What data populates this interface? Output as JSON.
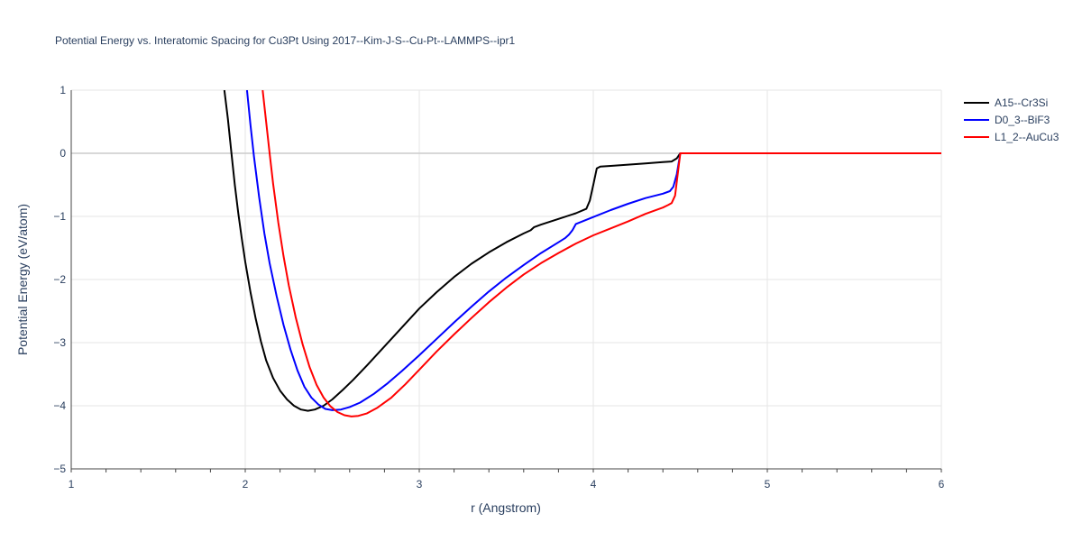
{
  "chart_data": {
    "type": "line",
    "title": "Potential Energy vs. Interatomic Spacing for Cu3Pt Using 2017--Kim-J-S--Cu-Pt--LAMMPS--ipr1",
    "xlabel": "r (Angstrom)",
    "ylabel": "Potential Energy (eV/atom)",
    "xlim": [
      1,
      6
    ],
    "ylim": [
      -5,
      1
    ],
    "xticks": [
      "1",
      "2",
      "3",
      "4",
      "5",
      "6"
    ],
    "yticks": [
      "1",
      "0",
      "−1",
      "−2",
      "−3",
      "−4",
      "−5"
    ],
    "grid": true,
    "legend_position": "top-right",
    "series": [
      {
        "name": "A15--Cr3Si",
        "color": "#000000",
        "x": [
          1.88,
          1.9,
          1.92,
          1.94,
          1.96,
          1.98,
          2.0,
          2.03,
          2.06,
          2.09,
          2.12,
          2.16,
          2.2,
          2.24,
          2.28,
          2.32,
          2.36,
          2.4,
          2.45,
          2.5,
          2.56,
          2.62,
          2.7,
          2.8,
          2.9,
          3.0,
          3.1,
          3.2,
          3.3,
          3.4,
          3.5,
          3.6,
          3.64,
          3.66,
          3.7,
          3.8,
          3.9,
          3.96,
          3.98,
          4.0,
          4.02,
          4.04,
          4.1,
          4.2,
          4.3,
          4.4,
          4.45,
          4.48,
          4.5,
          4.6,
          5.0,
          5.5,
          6.0
        ],
        "y": [
          1.0,
          0.55,
          0.02,
          -0.5,
          -0.95,
          -1.35,
          -1.72,
          -2.2,
          -2.62,
          -2.98,
          -3.28,
          -3.56,
          -3.76,
          -3.9,
          -4.0,
          -4.06,
          -4.08,
          -4.06,
          -4.0,
          -3.9,
          -3.75,
          -3.59,
          -3.36,
          -3.06,
          -2.76,
          -2.46,
          -2.2,
          -1.96,
          -1.75,
          -1.57,
          -1.41,
          -1.27,
          -1.22,
          -1.17,
          -1.13,
          -1.04,
          -0.95,
          -0.88,
          -0.75,
          -0.5,
          -0.24,
          -0.21,
          -0.2,
          -0.18,
          -0.16,
          -0.14,
          -0.13,
          -0.08,
          0.0,
          0.0,
          0.0,
          0.0,
          0.0
        ]
      },
      {
        "name": "D0_3--BiF3",
        "color": "#0000ff",
        "x": [
          2.01,
          2.03,
          2.05,
          2.08,
          2.11,
          2.14,
          2.18,
          2.22,
          2.26,
          2.3,
          2.34,
          2.38,
          2.42,
          2.46,
          2.5,
          2.55,
          2.6,
          2.66,
          2.74,
          2.82,
          2.9,
          3.0,
          3.1,
          3.2,
          3.3,
          3.4,
          3.5,
          3.6,
          3.7,
          3.8,
          3.84,
          3.86,
          3.88,
          3.9,
          4.0,
          4.1,
          4.2,
          4.3,
          4.4,
          4.44,
          4.46,
          4.48,
          4.5,
          4.6,
          5.0,
          5.5,
          6.0
        ],
        "y": [
          1.0,
          0.45,
          -0.05,
          -0.7,
          -1.27,
          -1.74,
          -2.26,
          -2.72,
          -3.11,
          -3.44,
          -3.7,
          -3.87,
          -3.98,
          -4.05,
          -4.07,
          -4.06,
          -4.02,
          -3.95,
          -3.81,
          -3.64,
          -3.45,
          -3.2,
          -2.94,
          -2.68,
          -2.43,
          -2.19,
          -1.97,
          -1.77,
          -1.58,
          -1.41,
          -1.34,
          -1.29,
          -1.22,
          -1.12,
          -1.01,
          -0.9,
          -0.8,
          -0.71,
          -0.64,
          -0.6,
          -0.53,
          -0.33,
          0.0,
          0.0,
          0.0,
          0.0,
          0.0
        ]
      },
      {
        "name": "L1_2--AuCu3",
        "color": "#ff0000",
        "x": [
          2.1,
          2.12,
          2.14,
          2.16,
          2.19,
          2.22,
          2.25,
          2.29,
          2.33,
          2.37,
          2.41,
          2.45,
          2.49,
          2.53,
          2.57,
          2.61,
          2.65,
          2.7,
          2.76,
          2.84,
          2.92,
          3.0,
          3.1,
          3.2,
          3.3,
          3.4,
          3.5,
          3.6,
          3.7,
          3.8,
          3.9,
          4.0,
          4.1,
          4.2,
          4.3,
          4.4,
          4.43,
          4.45,
          4.47,
          4.5,
          4.6,
          5.0,
          5.5,
          6.0
        ],
        "y": [
          1.0,
          0.5,
          0.0,
          -0.48,
          -1.1,
          -1.63,
          -2.09,
          -2.6,
          -3.03,
          -3.39,
          -3.67,
          -3.87,
          -4.01,
          -4.1,
          -4.15,
          -4.17,
          -4.16,
          -4.12,
          -4.03,
          -3.87,
          -3.66,
          -3.43,
          -3.14,
          -2.87,
          -2.61,
          -2.36,
          -2.13,
          -1.92,
          -1.74,
          -1.58,
          -1.43,
          -1.3,
          -1.19,
          -1.08,
          -0.96,
          -0.86,
          -0.82,
          -0.79,
          -0.67,
          0.0,
          0.0,
          0.0,
          0.0,
          0.0
        ]
      }
    ]
  }
}
